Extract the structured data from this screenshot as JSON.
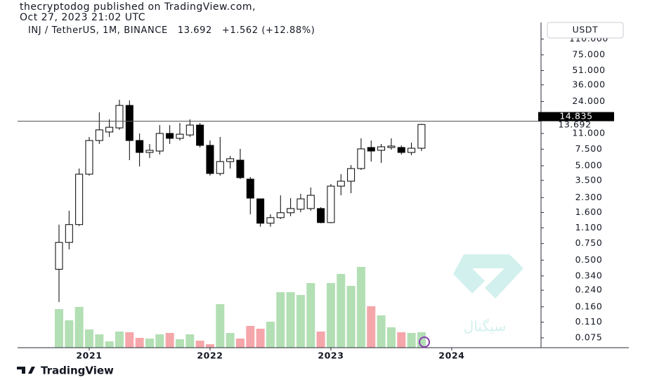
{
  "chart_data": {
    "type": "candlestick",
    "publisher": "thecryptodog published on TradingView.com,",
    "published": "Oct 27, 2023 21:02 UTC",
    "symbol": "INJ / TetherUS, 1M, BINANCE",
    "last_price": 13.692,
    "change": "+1.562 (+12.88%)",
    "currency": "USDT",
    "level": 14.835,
    "brand": "TradingView",
    "watermark": "سیگنال",
    "open": [
      0.4,
      0.77,
      1.19,
      4.07,
      9.26,
      11.4,
      12.6,
      21.8,
      9.26,
      6.92,
      7.16,
      11.0,
      9.76,
      10.6,
      13.5,
      8.22,
      4.14,
      5.54,
      5.73,
      3.61,
      2.23,
      1.23,
      1.41,
      1.59,
      1.73,
      1.76,
      1.76,
      1.25,
      3.04,
      3.43,
      4.67,
      7.81,
      7.29,
      7.81,
      7.81,
      6.92,
      7.67
    ],
    "high": [
      1.19,
      1.67,
      4.67,
      10.1,
      18.4,
      15.5,
      25.0,
      24.6,
      11.0,
      8.51,
      13.5,
      13.5,
      14.2,
      15.5,
      14.2,
      9.26,
      10.1,
      6.35,
      7.55,
      3.8,
      2.23,
      1.53,
      2.43,
      2.27,
      2.52,
      2.94,
      1.82,
      3.2,
      4.07,
      5.08,
      9.76,
      9.26,
      8.51,
      9.76,
      8.22,
      8.8,
      13.9
    ],
    "low": [
      0.18,
      0.65,
      1.15,
      3.93,
      8.51,
      10.1,
      12.0,
      5.73,
      4.91,
      6.04,
      6.58,
      8.51,
      9.26,
      10.1,
      7.81,
      3.93,
      3.93,
      4.67,
      3.61,
      1.53,
      1.13,
      1.13,
      1.36,
      1.46,
      1.61,
      1.67,
      1.23,
      1.23,
      2.43,
      2.56,
      4.51,
      5.54,
      5.36,
      7.41,
      6.58,
      6.46,
      7.16
    ],
    "close": [
      0.77,
      1.19,
      4.07,
      9.26,
      12.0,
      12.8,
      21.8,
      9.26,
      6.92,
      7.29,
      11.0,
      9.76,
      10.8,
      13.5,
      8.22,
      4.14,
      5.54,
      5.94,
      3.74,
      2.27,
      1.23,
      1.41,
      1.59,
      1.76,
      2.23,
      2.43,
      1.25,
      3.04,
      3.43,
      4.67,
      7.55,
      7.16,
      7.94,
      8.08,
      6.92,
      7.67,
      13.692
    ],
    "volume": [
      55,
      39,
      58,
      26,
      19,
      9,
      23,
      22,
      14,
      13,
      19,
      21,
      12,
      19,
      10,
      5,
      62,
      21,
      13,
      31,
      27,
      37,
      79,
      79,
      75,
      92,
      23,
      92,
      105,
      88,
      115,
      59,
      46,
      29,
      22,
      21,
      22
    ],
    "up_color": "#ffffff",
    "down_color": "#000000",
    "volume_up_color": "#b2dfb4",
    "volume_down_color": "#f5a6aa",
    "log": true,
    "ylim": [
      0.059,
      165
    ],
    "yticks": [
      {
        "value": 110,
        "label": "110.000"
      },
      {
        "value": 75,
        "label": "75.000"
      },
      {
        "value": 51,
        "label": "51.000"
      },
      {
        "value": 36,
        "label": "36.000"
      },
      {
        "value": 24,
        "label": "24.000"
      },
      {
        "value": 11,
        "label": "11.000"
      },
      {
        "value": 7.5,
        "label": "7.500"
      },
      {
        "value": 5,
        "label": "5.000"
      },
      {
        "value": 3.5,
        "label": "3.500"
      },
      {
        "value": 2.3,
        "label": "2.300"
      },
      {
        "value": 1.6,
        "label": "1.600"
      },
      {
        "value": 1.1,
        "label": "1.100"
      },
      {
        "value": 0.75,
        "label": "0.750"
      },
      {
        "value": 0.5,
        "label": "0.500"
      },
      {
        "value": 0.34,
        "label": "0.340"
      },
      {
        "value": 0.24,
        "label": "0.240"
      },
      {
        "value": 0.16,
        "label": "0.160"
      },
      {
        "value": 0.11,
        "label": "0.110"
      },
      {
        "value": 0.075,
        "label": "0.075"
      }
    ],
    "xlim": [
      -5.86,
      47.52
    ],
    "xticks": [
      {
        "value": 3,
        "label": "2021"
      },
      {
        "value": 15,
        "label": "2022"
      },
      {
        "value": 27,
        "label": "2023"
      },
      {
        "value": 39,
        "label": "2024"
      }
    ]
  }
}
